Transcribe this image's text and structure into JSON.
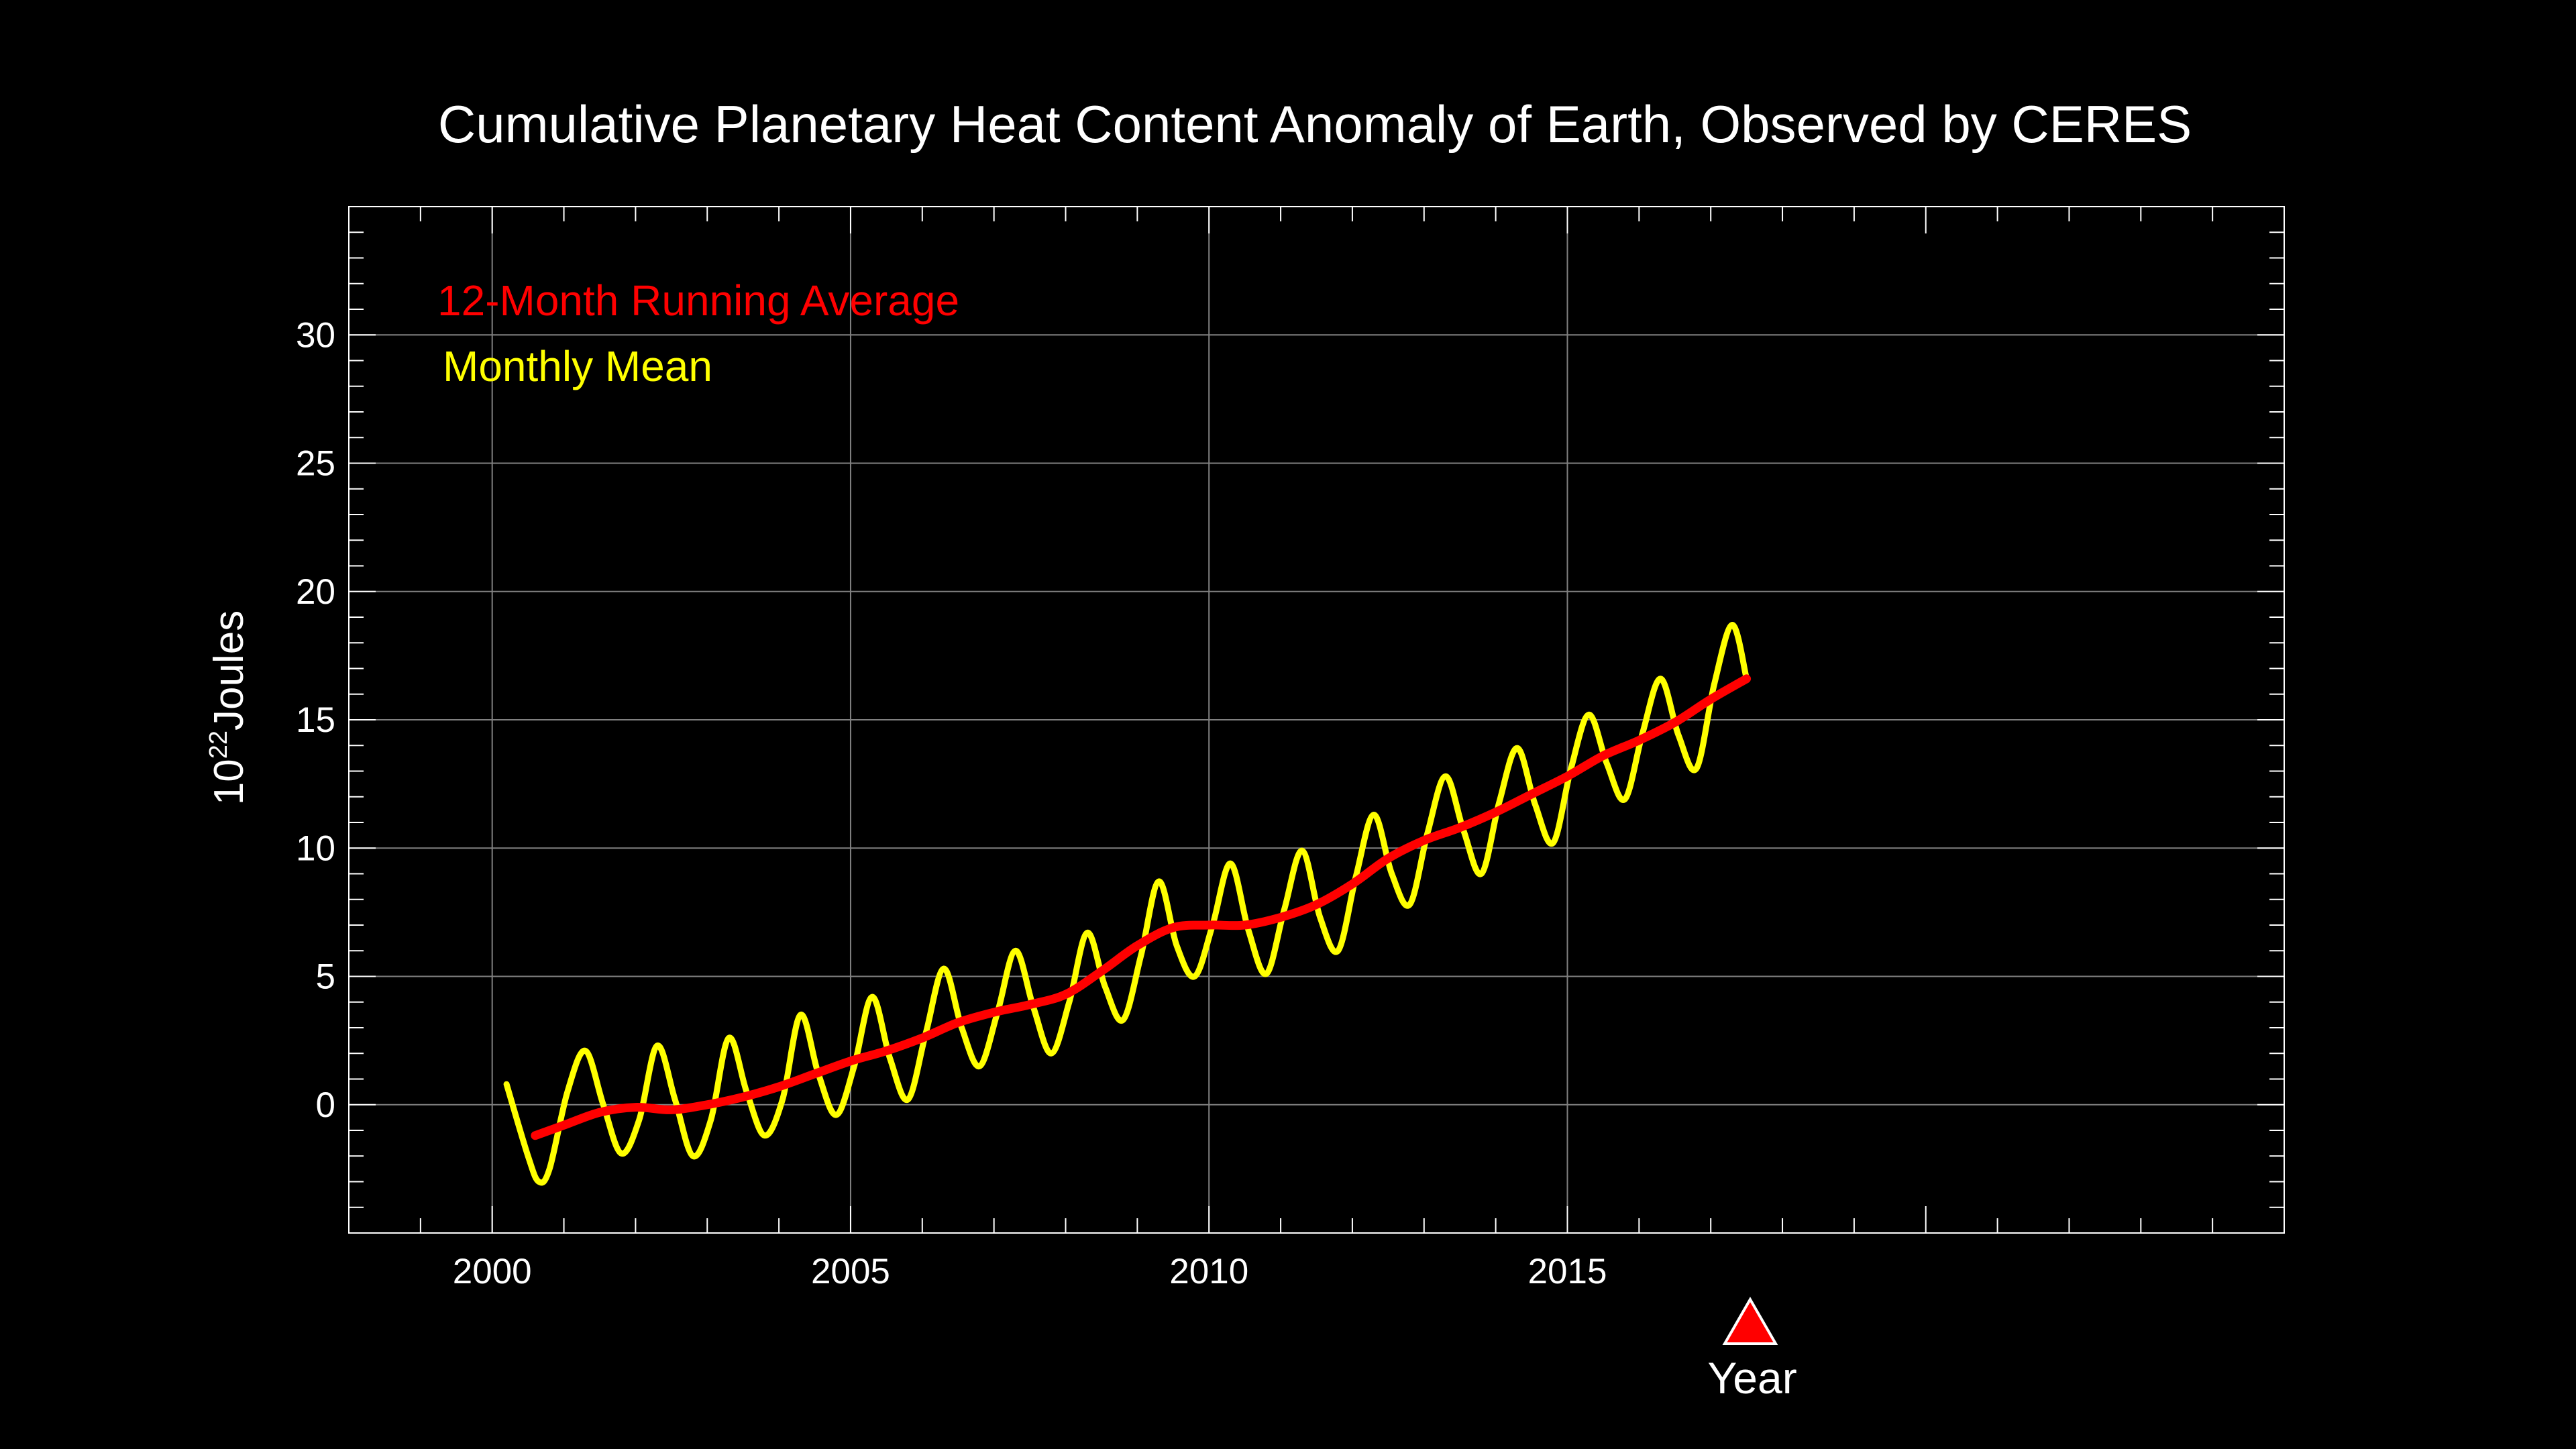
{
  "chart_data": {
    "type": "line",
    "title": "Cumulative Planetary Heat Content Anomaly of Earth, Observed by CERES",
    "xlabel": "Year",
    "ylabel_base": "10",
    "ylabel_exponent": "22",
    "ylabel_unit": "Joules",
    "xlim": [
      1998.0,
      2025.0
    ],
    "ylim": [
      -5.0,
      35.0
    ],
    "x_ticks": [
      2000,
      2005,
      2010,
      2015
    ],
    "y_ticks": [
      0,
      5,
      10,
      15,
      20,
      25,
      30
    ],
    "grid": true,
    "legend_position": "top-left",
    "annotation": "red triangle marker below x-axis near 2017.5",
    "colors": {
      "background": "#000000",
      "axes": "#ffffff",
      "grid": "#808080",
      "running_average": "#ff0000",
      "monthly_mean": "#ffff00",
      "marker": "#ff0000"
    },
    "series": [
      {
        "name": "12-Month Running Average",
        "color": "#ff0000",
        "x": [
          2000.6,
          2001.0,
          2001.5,
          2002.0,
          2002.5,
          2003.0,
          2003.5,
          2004.0,
          2004.5,
          2005.0,
          2005.5,
          2006.0,
          2006.5,
          2007.0,
          2007.5,
          2008.0,
          2008.5,
          2009.0,
          2009.5,
          2010.0,
          2010.5,
          2011.0,
          2011.5,
          2012.0,
          2012.5,
          2013.0,
          2013.5,
          2014.0,
          2014.5,
          2015.0,
          2015.5,
          2016.0,
          2016.5,
          2017.0,
          2017.5
        ],
        "values": [
          -1.2,
          -0.8,
          -0.3,
          -0.1,
          -0.2,
          0.0,
          0.3,
          0.7,
          1.2,
          1.7,
          2.1,
          2.6,
          3.2,
          3.6,
          3.9,
          4.3,
          5.2,
          6.2,
          6.9,
          7.0,
          7.0,
          7.3,
          7.8,
          8.6,
          9.6,
          10.3,
          10.8,
          11.4,
          12.1,
          12.8,
          13.6,
          14.2,
          14.9,
          15.8,
          16.6
        ]
      },
      {
        "name": "Monthly Mean",
        "color": "#ffff00",
        "x": [
          2000.2,
          2000.5,
          2000.65,
          2000.8,
          2001.05,
          2001.3,
          2001.55,
          2001.8,
          2002.05,
          2002.3,
          2002.55,
          2002.8,
          2003.05,
          2003.3,
          2003.55,
          2003.8,
          2004.05,
          2004.3,
          2004.55,
          2004.8,
          2005.05,
          2005.3,
          2005.55,
          2005.8,
          2006.05,
          2006.3,
          2006.55,
          2006.8,
          2007.05,
          2007.3,
          2007.55,
          2007.8,
          2008.05,
          2008.3,
          2008.55,
          2008.8,
          2009.05,
          2009.3,
          2009.55,
          2009.8,
          2010.05,
          2010.3,
          2010.55,
          2010.8,
          2011.05,
          2011.3,
          2011.55,
          2011.8,
          2012.05,
          2012.3,
          2012.55,
          2012.8,
          2013.05,
          2013.3,
          2013.55,
          2013.8,
          2014.05,
          2014.3,
          2014.55,
          2014.8,
          2015.05,
          2015.3,
          2015.55,
          2015.8,
          2016.05,
          2016.3,
          2016.55,
          2016.8,
          2017.05,
          2017.3,
          2017.5
        ],
        "values": [
          0.8,
          -2.0,
          -3.0,
          -2.5,
          0.5,
          2.1,
          0.0,
          -1.9,
          -0.6,
          2.3,
          0.2,
          -2.0,
          -0.6,
          2.6,
          0.5,
          -1.2,
          0.2,
          3.5,
          1.2,
          -0.4,
          1.5,
          4.2,
          1.8,
          0.2,
          2.8,
          5.3,
          3.0,
          1.5,
          3.6,
          6.0,
          3.8,
          2.0,
          4.0,
          6.7,
          4.6,
          3.3,
          5.8,
          8.7,
          6.2,
          5.0,
          7.0,
          9.4,
          6.8,
          5.1,
          7.6,
          9.9,
          7.3,
          6.0,
          8.9,
          11.3,
          9.0,
          7.8,
          10.6,
          12.8,
          10.7,
          9.0,
          11.8,
          13.9,
          11.7,
          10.2,
          13.1,
          15.2,
          13.3,
          11.9,
          14.5,
          16.6,
          14.4,
          13.1,
          16.4,
          18.7,
          16.6
        ]
      }
    ]
  }
}
